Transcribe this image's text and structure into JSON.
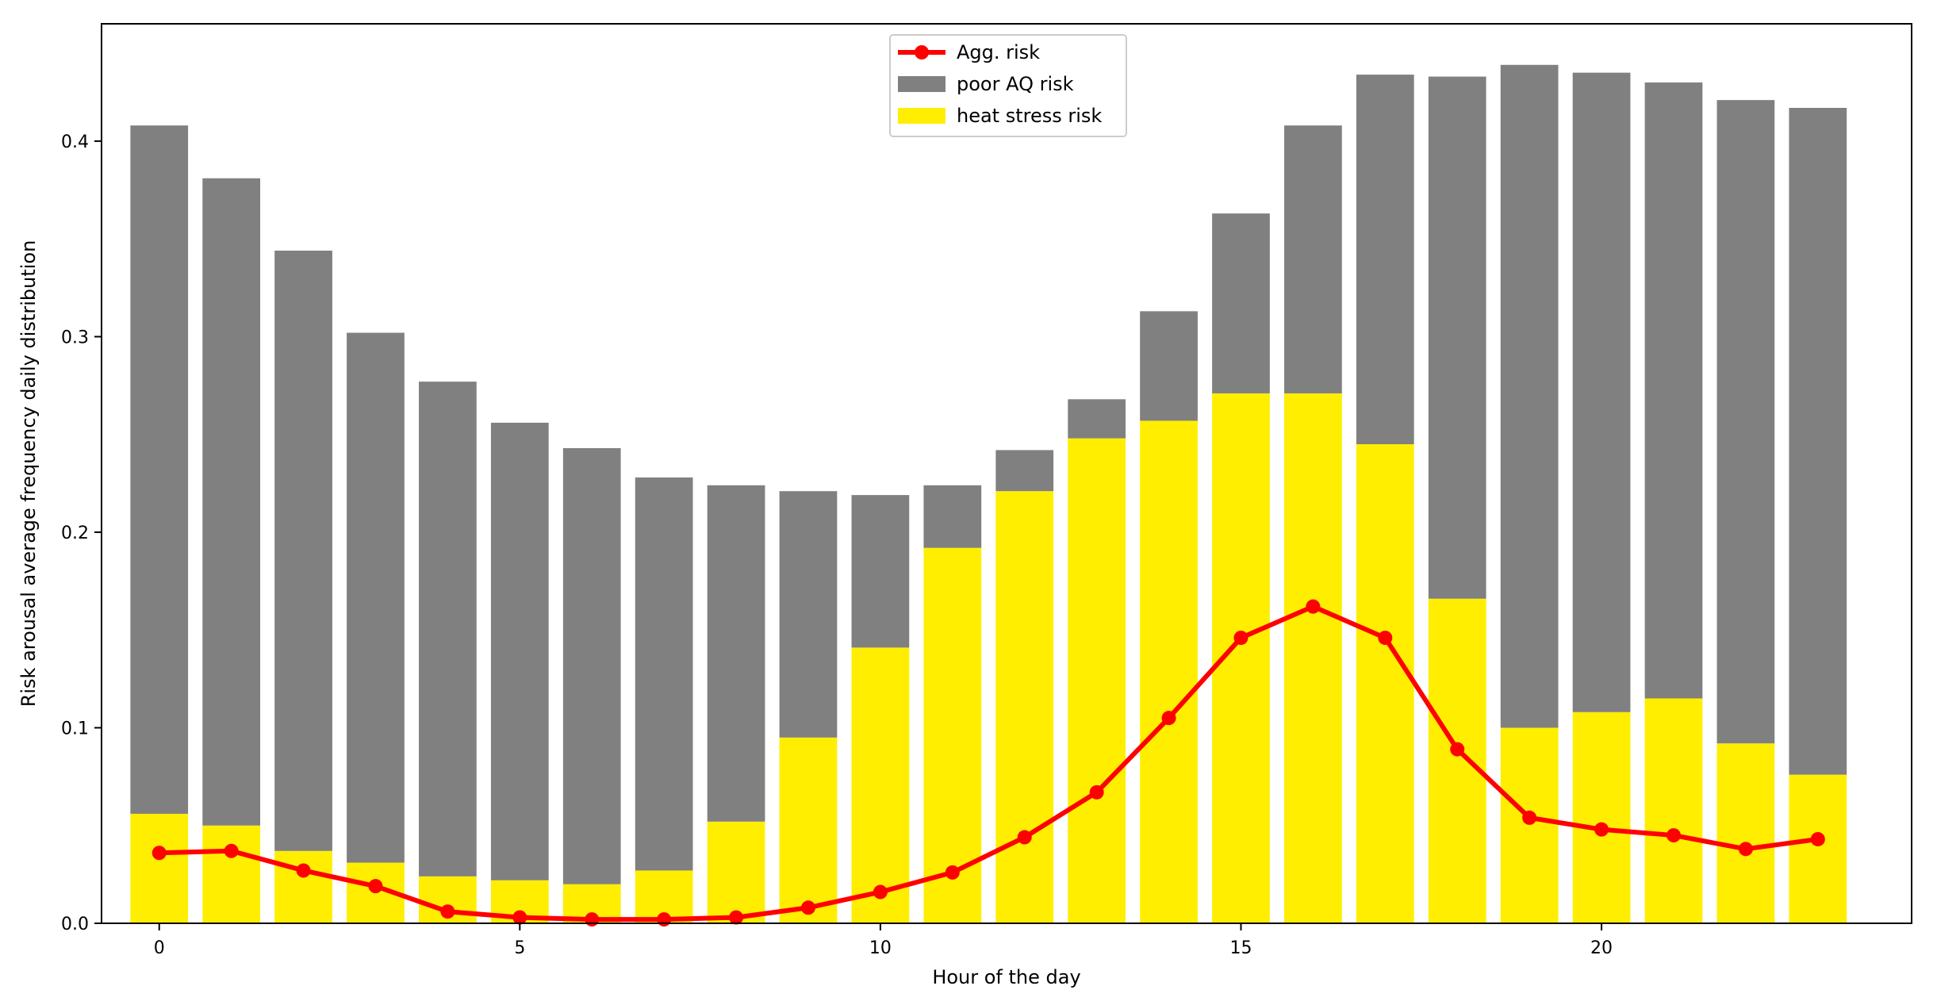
{
  "chart_data": {
    "type": "bar",
    "stacked": true,
    "title": "",
    "xlabel": "Hour of the day",
    "ylabel": "Risk arousal average frequency daily distribution",
    "categories": [
      0,
      1,
      2,
      3,
      4,
      5,
      6,
      7,
      8,
      9,
      10,
      11,
      12,
      13,
      14,
      15,
      16,
      17,
      18,
      19,
      20,
      21,
      22,
      23
    ],
    "xticks": [
      0,
      5,
      10,
      15,
      20
    ],
    "yticks": [
      0.0,
      0.1,
      0.2,
      0.3,
      0.4
    ],
    "xlim": [
      -0.8,
      24.3
    ],
    "ylim": [
      0,
      0.46
    ],
    "legend_position": "upper-center",
    "series": [
      {
        "name": "heat stress risk",
        "kind": "bar",
        "color": "#ffee00",
        "values": [
          0.056,
          0.05,
          0.037,
          0.031,
          0.024,
          0.022,
          0.02,
          0.027,
          0.052,
          0.095,
          0.141,
          0.192,
          0.221,
          0.248,
          0.257,
          0.271,
          0.271,
          0.245,
          0.166,
          0.1,
          0.108,
          0.115,
          0.092,
          0.076
        ]
      },
      {
        "name": "poor AQ risk",
        "kind": "bar",
        "color": "#808080",
        "values": [
          0.352,
          0.331,
          0.307,
          0.271,
          0.253,
          0.234,
          0.223,
          0.201,
          0.172,
          0.126,
          0.078,
          0.032,
          0.021,
          0.02,
          0.056,
          0.092,
          0.137,
          0.189,
          0.267,
          0.339,
          0.327,
          0.315,
          0.329,
          0.341
        ]
      },
      {
        "name": "Agg. risk",
        "kind": "line",
        "color": "#ff0000",
        "values": [
          0.036,
          0.037,
          0.027,
          0.019,
          0.006,
          0.003,
          0.002,
          0.002,
          0.003,
          0.008,
          0.016,
          0.026,
          0.044,
          0.067,
          0.105,
          0.146,
          0.162,
          0.146,
          0.089,
          0.054,
          0.048,
          0.045,
          0.038,
          0.043
        ]
      }
    ],
    "legend_order": [
      "Agg. risk",
      "poor AQ risk",
      "heat stress risk"
    ]
  }
}
